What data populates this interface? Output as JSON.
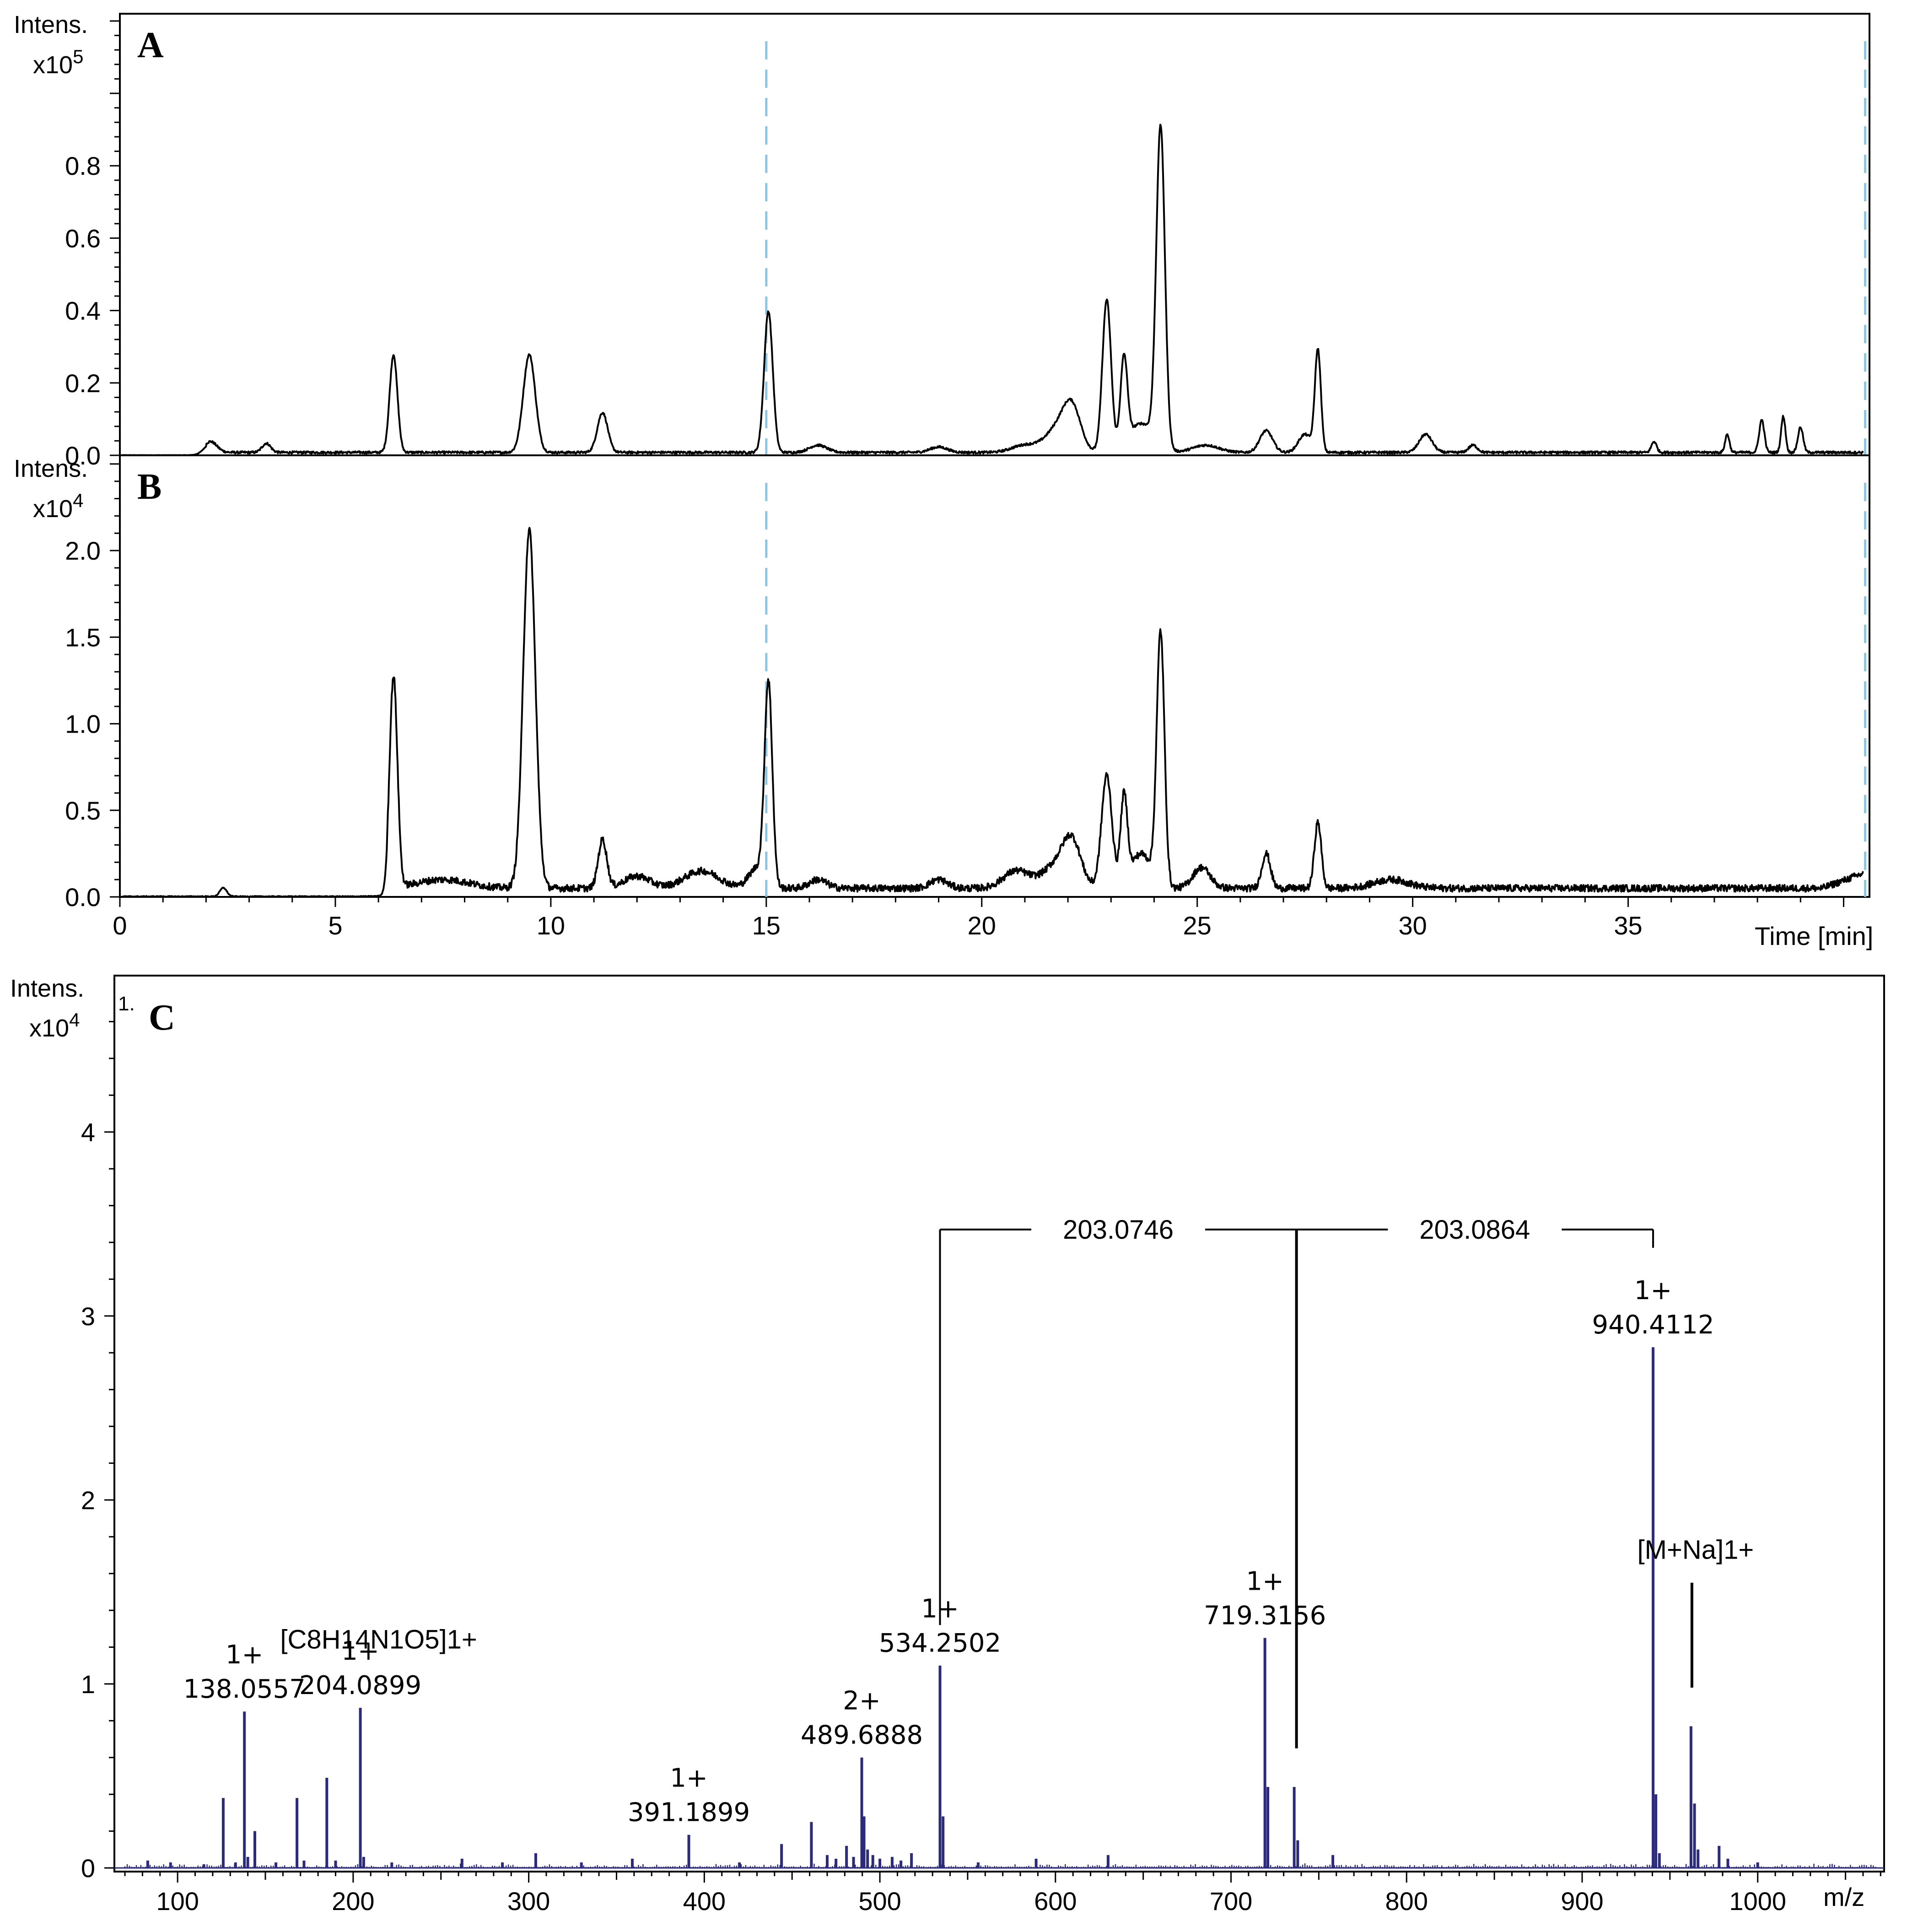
{
  "colors": {
    "trace": "#000000",
    "spectrum": "#2b2b7a",
    "marker": "#8fc3e0",
    "frame": "#000000"
  },
  "chart_data": [
    {
      "panel": "A",
      "type": "line",
      "ylabel": "Intens.",
      "yexponent": "x10",
      "yexponent_power": "5",
      "xlim": [
        0,
        40.6
      ],
      "ylim": [
        0,
        1.22
      ],
      "yticks": [
        "0.0",
        "0.2",
        "0.4",
        "0.6",
        "0.8"
      ],
      "yticks_values": [
        0,
        0.2,
        0.4,
        0.6,
        0.8
      ],
      "markers_x": [
        15,
        40.5
      ],
      "baseline_start": 2.0,
      "baseline": 0.008,
      "peaks": [
        {
          "x": 2.1,
          "y": 0.03,
          "w": 0.15
        },
        {
          "x": 3.4,
          "y": 0.025,
          "w": 0.1
        },
        {
          "x": 6.35,
          "y": 0.27,
          "w": 0.09
        },
        {
          "x": 9.5,
          "y": 0.27,
          "w": 0.14
        },
        {
          "x": 11.2,
          "y": 0.11,
          "w": 0.12
        },
        {
          "x": 15.05,
          "y": 0.39,
          "w": 0.1
        },
        {
          "x": 16.2,
          "y": 0.02,
          "w": 0.2
        },
        {
          "x": 19.0,
          "y": 0.015,
          "w": 0.2
        },
        {
          "x": 21.0,
          "y": 0.02,
          "w": 0.3
        },
        {
          "x": 21.8,
          "y": 0.07,
          "w": 0.3
        },
        {
          "x": 22.1,
          "y": 0.1,
          "w": 0.2
        },
        {
          "x": 22.9,
          "y": 0.42,
          "w": 0.1
        },
        {
          "x": 23.3,
          "y": 0.24,
          "w": 0.08
        },
        {
          "x": 23.7,
          "y": 0.08,
          "w": 0.3
        },
        {
          "x": 24.15,
          "y": 0.88,
          "w": 0.1
        },
        {
          "x": 25.2,
          "y": 0.02,
          "w": 0.3
        },
        {
          "x": 26.6,
          "y": 0.06,
          "w": 0.15
        },
        {
          "x": 27.5,
          "y": 0.05,
          "w": 0.15
        },
        {
          "x": 27.8,
          "y": 0.28,
          "w": 0.07
        },
        {
          "x": 30.3,
          "y": 0.05,
          "w": 0.15
        },
        {
          "x": 31.4,
          "y": 0.02,
          "w": 0.1
        },
        {
          "x": 35.6,
          "y": 0.03,
          "w": 0.06
        },
        {
          "x": 37.3,
          "y": 0.05,
          "w": 0.05
        },
        {
          "x": 38.1,
          "y": 0.09,
          "w": 0.06
        },
        {
          "x": 38.6,
          "y": 0.1,
          "w": 0.05
        },
        {
          "x": 39.0,
          "y": 0.07,
          "w": 0.06
        }
      ]
    },
    {
      "panel": "B",
      "type": "line",
      "ylabel": "Intens.",
      "yexponent": "x10",
      "yexponent_power": "4",
      "xlabel": "Time [min]",
      "xlim": [
        0,
        40.6
      ],
      "ylim": [
        0,
        2.55
      ],
      "xticks": [
        0,
        5,
        10,
        15,
        20,
        25,
        30,
        35
      ],
      "yticks": [
        "0.0",
        "0.5",
        "1.0",
        "1.5",
        "2.0"
      ],
      "yticks_values": [
        0,
        0.5,
        1.0,
        1.5,
        2.0
      ],
      "markers_x": [
        15,
        40.5
      ],
      "baseline_start": 6.2,
      "baseline": 0.05,
      "peaks": [
        {
          "x": 2.4,
          "y": 0.05,
          "w": 0.08
        },
        {
          "x": 6.35,
          "y": 1.22,
          "w": 0.09
        },
        {
          "x": 7.5,
          "y": 0.05,
          "w": 0.6
        },
        {
          "x": 9.5,
          "y": 2.07,
          "w": 0.14
        },
        {
          "x": 11.2,
          "y": 0.28,
          "w": 0.1
        },
        {
          "x": 12.0,
          "y": 0.07,
          "w": 0.3
        },
        {
          "x": 13.5,
          "y": 0.1,
          "w": 0.4
        },
        {
          "x": 14.8,
          "y": 0.12,
          "w": 0.2
        },
        {
          "x": 15.05,
          "y": 1.15,
          "w": 0.09
        },
        {
          "x": 16.2,
          "y": 0.05,
          "w": 0.2
        },
        {
          "x": 19.0,
          "y": 0.05,
          "w": 0.2
        },
        {
          "x": 20.8,
          "y": 0.1,
          "w": 0.3
        },
        {
          "x": 21.8,
          "y": 0.15,
          "w": 0.35
        },
        {
          "x": 22.1,
          "y": 0.2,
          "w": 0.2
        },
        {
          "x": 22.9,
          "y": 0.65,
          "w": 0.12
        },
        {
          "x": 23.3,
          "y": 0.5,
          "w": 0.08
        },
        {
          "x": 23.7,
          "y": 0.2,
          "w": 0.25
        },
        {
          "x": 24.15,
          "y": 1.45,
          "w": 0.09
        },
        {
          "x": 25.1,
          "y": 0.12,
          "w": 0.2
        },
        {
          "x": 26.6,
          "y": 0.2,
          "w": 0.1
        },
        {
          "x": 27.8,
          "y": 0.38,
          "w": 0.08
        },
        {
          "x": 29.5,
          "y": 0.05,
          "w": 0.4
        }
      ],
      "tail": [
        {
          "x": 39.5,
          "y": 0.02
        },
        {
          "x": 40.5,
          "y": 0.15
        }
      ]
    },
    {
      "panel": "C",
      "type": "bar",
      "ylabel": "Intens.",
      "yexponent": "x10",
      "yexponent_power": "4",
      "corner_note": "1.",
      "xlabel": "m/z",
      "xlim": [
        64,
        1072
      ],
      "ylim": [
        -0.02,
        4.85
      ],
      "xticks": [
        100,
        200,
        300,
        400,
        500,
        600,
        700,
        800,
        900,
        1000
      ],
      "yticks": [
        "0",
        "1",
        "2",
        "3",
        "4"
      ],
      "yticks_values": [
        0,
        1,
        2,
        3,
        4
      ],
      "peaks": [
        {
          "mz": 83,
          "i": 0.04
        },
        {
          "mz": 96,
          "i": 0.03
        },
        {
          "mz": 115,
          "i": 0.02
        },
        {
          "mz": 126,
          "i": 0.38
        },
        {
          "mz": 133,
          "i": 0.03
        },
        {
          "mz": 138.0557,
          "i": 0.85
        },
        {
          "mz": 140,
          "i": 0.06
        },
        {
          "mz": 144,
          "i": 0.2
        },
        {
          "mz": 156,
          "i": 0.03
        },
        {
          "mz": 168,
          "i": 0.38
        },
        {
          "mz": 172,
          "i": 0.04
        },
        {
          "mz": 185,
          "i": 0.49
        },
        {
          "mz": 190,
          "i": 0.04
        },
        {
          "mz": 204.0899,
          "i": 0.87
        },
        {
          "mz": 206,
          "i": 0.06
        },
        {
          "mz": 222,
          "i": 0.03
        },
        {
          "mz": 262,
          "i": 0.05
        },
        {
          "mz": 285,
          "i": 0.03
        },
        {
          "mz": 304,
          "i": 0.08
        },
        {
          "mz": 330,
          "i": 0.03
        },
        {
          "mz": 359,
          "i": 0.05
        },
        {
          "mz": 391.1899,
          "i": 0.18
        },
        {
          "mz": 420,
          "i": 0.03
        },
        {
          "mz": 444,
          "i": 0.13
        },
        {
          "mz": 461,
          "i": 0.25
        },
        {
          "mz": 470,
          "i": 0.07
        },
        {
          "mz": 475,
          "i": 0.05
        },
        {
          "mz": 481,
          "i": 0.12
        },
        {
          "mz": 485,
          "i": 0.06
        },
        {
          "mz": 489.6888,
          "i": 0.6
        },
        {
          "mz": 491,
          "i": 0.28
        },
        {
          "mz": 493,
          "i": 0.1
        },
        {
          "mz": 496,
          "i": 0.07
        },
        {
          "mz": 500,
          "i": 0.05
        },
        {
          "mz": 507,
          "i": 0.06
        },
        {
          "mz": 512,
          "i": 0.04
        },
        {
          "mz": 518,
          "i": 0.08
        },
        {
          "mz": 534.2502,
          "i": 1.1
        },
        {
          "mz": 536,
          "i": 0.28
        },
        {
          "mz": 556,
          "i": 0.03
        },
        {
          "mz": 589,
          "i": 0.05
        },
        {
          "mz": 630,
          "i": 0.07
        },
        {
          "mz": 719.3156,
          "i": 1.25
        },
        {
          "mz": 721,
          "i": 0.44
        },
        {
          "mz": 736,
          "i": 0.44
        },
        {
          "mz": 738,
          "i": 0.15
        },
        {
          "mz": 758,
          "i": 0.07
        },
        {
          "mz": 940.4112,
          "i": 2.83
        },
        {
          "mz": 942,
          "i": 0.4
        },
        {
          "mz": 944,
          "i": 0.08
        },
        {
          "mz": 962,
          "i": 0.77
        },
        {
          "mz": 964,
          "i": 0.35
        },
        {
          "mz": 966,
          "i": 0.1
        },
        {
          "mz": 978,
          "i": 0.12
        },
        {
          "mz": 983,
          "i": 0.05
        },
        {
          "mz": 1000,
          "i": 0.03
        }
      ],
      "labels": [
        {
          "charge": "1+",
          "mz_text": "138.0557",
          "mz": 138.0557,
          "i": 0.85
        },
        {
          "charge": "1+",
          "mz_text": "204.0899",
          "mz": 204.0899,
          "i": 0.87
        },
        {
          "charge": "1+",
          "mz_text": "391.1899",
          "mz": 391.1899,
          "i": 0.18
        },
        {
          "charge": "2+",
          "mz_text": "489.6888",
          "mz": 489.6888,
          "i": 0.6
        },
        {
          "charge": "1+",
          "mz_text": "534.2502",
          "mz": 534.2502,
          "i": 1.1
        },
        {
          "charge": "1+",
          "mz_text": "719.3156",
          "mz": 719.3156,
          "i": 1.25
        },
        {
          "charge": "1+",
          "mz_text": "940.4112",
          "mz": 940.4112,
          "i": 2.83
        }
      ],
      "annotations": {
        "formula": {
          "text": "[C8H14N1O5]1+",
          "mz": 204.0899
        },
        "adduct": {
          "text": "[M+Na]1+",
          "mz": 962
        }
      },
      "mass_differences": {
        "y": 3.47,
        "segments": [
          {
            "from": 534.2502,
            "to": 737.3,
            "text": "203.0746"
          },
          {
            "from": 737.3,
            "to": 940.4112,
            "text": "203.0864"
          }
        ]
      }
    }
  ]
}
